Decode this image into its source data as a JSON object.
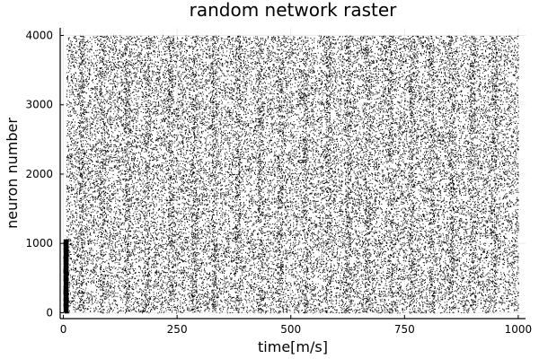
{
  "chart_data": {
    "type": "scatter",
    "title": "random network raster",
    "xlabel": "time[m/s]",
    "ylabel": "neuron number",
    "xlim": [
      -7,
      1016
    ],
    "ylim": [
      -85,
      4110
    ],
    "xticks": [
      0,
      250,
      500,
      750,
      1000
    ],
    "yticks": [
      0,
      1000,
      2000,
      3000,
      4000
    ],
    "xtick_labels": [
      "0",
      "250",
      "500",
      "750",
      "1000"
    ],
    "ytick_labels": [
      "0",
      "1000",
      "2000",
      "3000",
      "4000"
    ],
    "grid": true,
    "legend": "none",
    "marker_color": "#000000",
    "series": [
      {
        "description": "spike events (time, neuron index) — dense raster of black dots",
        "neurons": 4000,
        "time_range": [
          0,
          1000
        ],
        "initial_burst": {
          "time_range": [
            0,
            10
          ],
          "neuron_range": [
            0,
            1060
          ]
        }
      }
    ]
  }
}
